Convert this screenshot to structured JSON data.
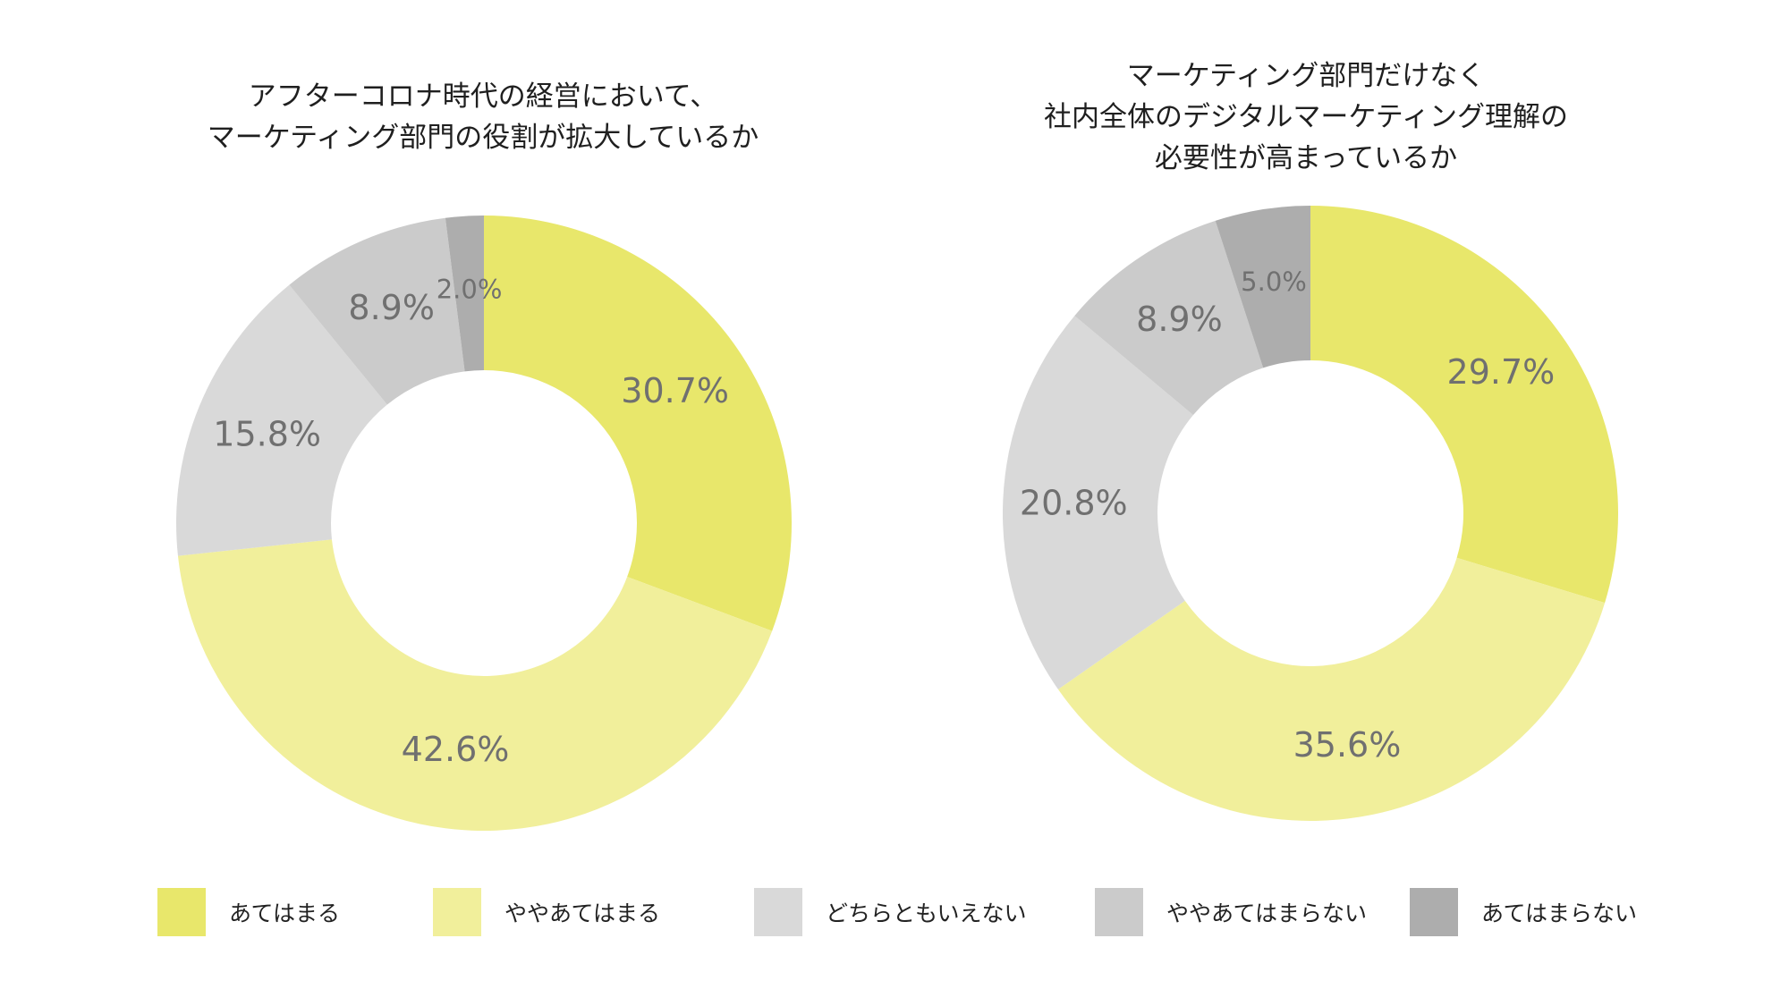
{
  "colors": {
    "atehamaru": "#e8e76b",
    "yaya_atehamaru": "#f1ef9b",
    "dochiratomo": "#d9d9d9",
    "yaya_atehamaranai": "#cbcbcb",
    "atehamaranai": "#adadad",
    "label_text": "#707070"
  },
  "legend": [
    {
      "label": "あてはまる",
      "color": "#e8e76b"
    },
    {
      "label": "ややあてはまる",
      "color": "#f1ef9b"
    },
    {
      "label": "どちらともいえない",
      "color": "#d9d9d9"
    },
    {
      "label": "ややあてはまらない",
      "color": "#cbcbcb"
    },
    {
      "label": "あてはまらない",
      "color": "#adadad"
    }
  ],
  "chart_data": [
    {
      "type": "pie",
      "style": "donut",
      "title_lines": [
        "アフターコロナ時代の経営において、",
        "マーケティング部門の役割が拡大しているか"
      ],
      "categories": [
        "あてはまる",
        "ややあてはまる",
        "どちらともいえない",
        "ややあてはまらない",
        "あてはまらない"
      ],
      "values": [
        30.7,
        42.6,
        15.8,
        8.9,
        2.0
      ],
      "labels": [
        "30.7%",
        "42.6%",
        "15.8%",
        "8.9%",
        "2.0%"
      ]
    },
    {
      "type": "pie",
      "style": "donut",
      "title_lines": [
        "マーケティング部門だけなく",
        "社内全体のデジタルマーケティング理解の",
        "必要性が高まっているか"
      ],
      "categories": [
        "あてはまる",
        "ややあてはまる",
        "どちらともいえない",
        "ややあてはまらない",
        "あてはまらない"
      ],
      "values": [
        29.7,
        35.6,
        20.8,
        8.9,
        5.0
      ],
      "labels": [
        "29.7%",
        "35.6%",
        "20.8%",
        "8.9%",
        "5.0%"
      ]
    }
  ]
}
